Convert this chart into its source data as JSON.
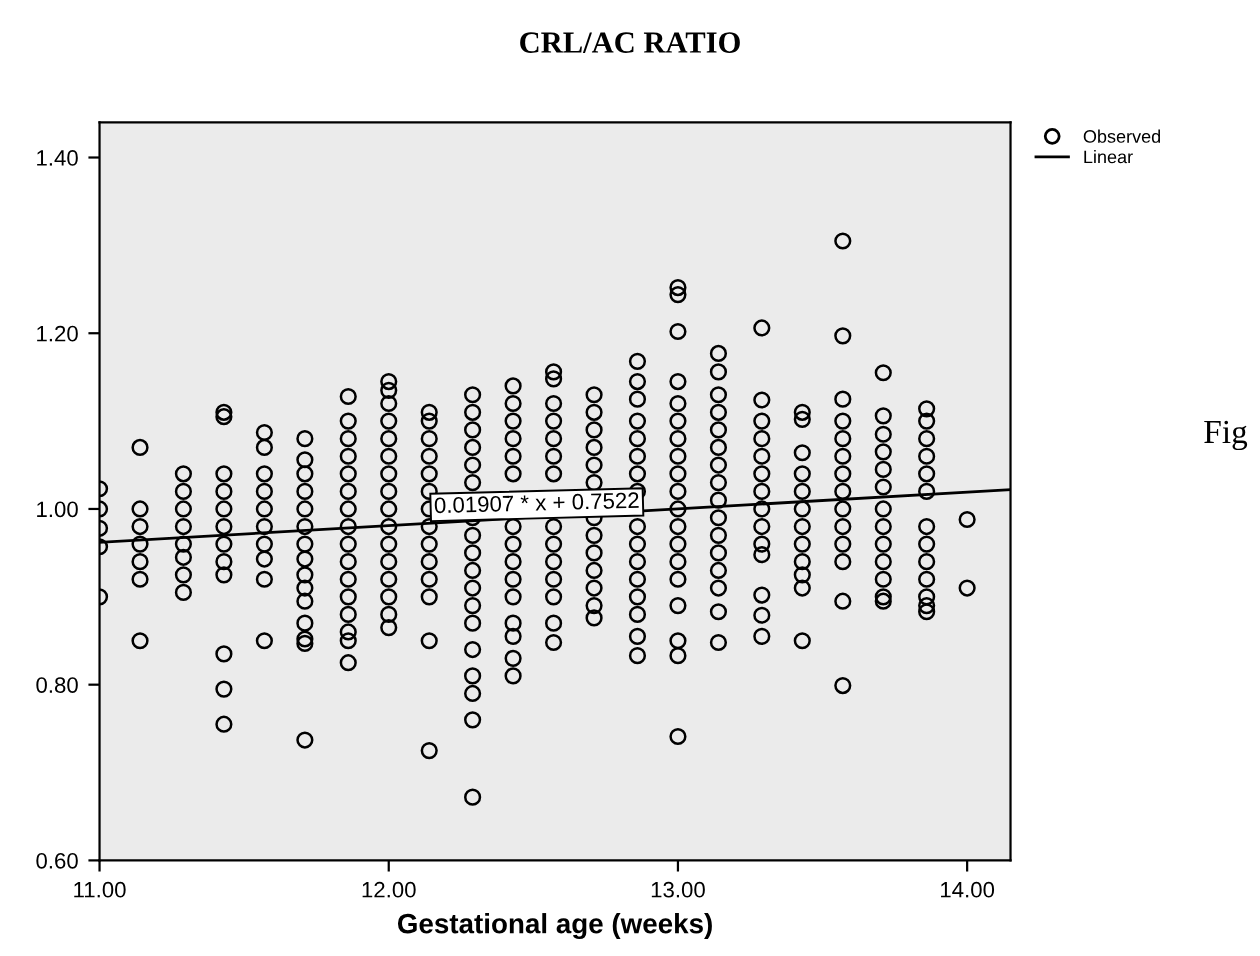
{
  "chart_data": {
    "type": "scatter",
    "title": "CRL/AC RATIO",
    "xlabel": "Gestational age (weeks)",
    "xlim": [
      11,
      14.15
    ],
    "ylim": [
      0.6,
      1.44
    ],
    "xticks": [
      {
        "value": 11,
        "label": "11.00"
      },
      {
        "value": 12,
        "label": "12.00"
      },
      {
        "value": 13,
        "label": "13.00"
      },
      {
        "value": 14,
        "label": "14.00"
      }
    ],
    "yticks": [
      {
        "value": 0.6,
        "label": "0.60"
      },
      {
        "value": 0.8,
        "label": "0.80"
      },
      {
        "value": 1.0,
        "label": "1.00"
      },
      {
        "value": 1.2,
        "label": "1.20"
      },
      {
        "value": 1.4,
        "label": "1.40"
      }
    ],
    "grid": false,
    "legend": "top right",
    "marker": "circle",
    "series": [
      {
        "name": "Observed",
        "color": "#000000",
        "x": [
          11.0,
          11.0,
          11.0,
          11.0,
          11.0,
          11.14,
          11.14,
          11.14,
          11.14,
          11.14,
          11.14,
          11.14,
          11.29,
          11.29,
          11.29,
          11.29,
          11.29,
          11.29,
          11.29,
          11.29,
          11.43,
          11.43,
          11.43,
          11.43,
          11.43,
          11.43,
          11.43,
          11.43,
          11.43,
          11.43,
          11.43,
          11.43,
          11.57,
          11.57,
          11.57,
          11.57,
          11.57,
          11.57,
          11.57,
          11.57,
          11.57,
          11.57,
          11.71,
          11.71,
          11.71,
          11.71,
          11.71,
          11.71,
          11.71,
          11.71,
          11.71,
          11.71,
          11.71,
          11.71,
          11.71,
          11.71,
          11.71,
          11.86,
          11.86,
          11.86,
          11.86,
          11.86,
          11.86,
          11.86,
          11.86,
          11.86,
          11.86,
          11.86,
          11.86,
          11.86,
          11.86,
          11.86,
          11.86,
          12.0,
          12.0,
          12.0,
          12.0,
          12.0,
          12.0,
          12.0,
          12.0,
          12.0,
          12.0,
          12.0,
          12.0,
          12.0,
          12.0,
          12.0,
          12.0,
          12.14,
          12.14,
          12.14,
          12.14,
          12.14,
          12.14,
          12.14,
          12.14,
          12.14,
          12.14,
          12.14,
          12.14,
          12.14,
          12.14,
          12.29,
          12.29,
          12.29,
          12.29,
          12.29,
          12.29,
          12.29,
          12.29,
          12.29,
          12.29,
          12.29,
          12.29,
          12.29,
          12.29,
          12.29,
          12.29,
          12.29,
          12.29,
          12.43,
          12.43,
          12.43,
          12.43,
          12.43,
          12.43,
          12.43,
          12.43,
          12.43,
          12.43,
          12.43,
          12.43,
          12.43,
          12.43,
          12.43,
          12.57,
          12.57,
          12.57,
          12.57,
          12.57,
          12.57,
          12.57,
          12.57,
          12.57,
          12.57,
          12.57,
          12.57,
          12.57,
          12.57,
          12.71,
          12.71,
          12.71,
          12.71,
          12.71,
          12.71,
          12.71,
          12.71,
          12.71,
          12.71,
          12.71,
          12.71,
          12.71,
          12.86,
          12.86,
          12.86,
          12.86,
          12.86,
          12.86,
          12.86,
          12.86,
          12.86,
          12.86,
          12.86,
          12.86,
          12.86,
          12.86,
          12.86,
          12.86,
          13.0,
          13.0,
          13.0,
          13.0,
          13.0,
          13.0,
          13.0,
          13.0,
          13.0,
          13.0,
          13.0,
          13.0,
          13.0,
          13.0,
          13.0,
          13.0,
          13.0,
          13.0,
          13.0,
          13.14,
          13.14,
          13.14,
          13.14,
          13.14,
          13.14,
          13.14,
          13.14,
          13.14,
          13.14,
          13.14,
          13.14,
          13.14,
          13.14,
          13.14,
          13.14,
          13.29,
          13.29,
          13.29,
          13.29,
          13.29,
          13.29,
          13.29,
          13.29,
          13.29,
          13.29,
          13.29,
          13.29,
          13.29,
          13.29,
          13.43,
          13.43,
          13.43,
          13.43,
          13.43,
          13.43,
          13.43,
          13.43,
          13.43,
          13.43,
          13.43,
          13.43,
          13.57,
          13.57,
          13.57,
          13.57,
          13.57,
          13.57,
          13.57,
          13.57,
          13.57,
          13.57,
          13.57,
          13.57,
          13.57,
          13.57,
          13.71,
          13.71,
          13.71,
          13.71,
          13.71,
          13.71,
          13.71,
          13.71,
          13.71,
          13.71,
          13.71,
          13.71,
          13.71,
          13.86,
          13.86,
          13.86,
          13.86,
          13.86,
          13.86,
          13.86,
          13.86,
          13.86,
          13.86,
          13.86,
          13.86,
          13.86,
          14.0,
          14.0
        ],
        "values": [
          1.023,
          1.0,
          0.978,
          0.957,
          0.9,
          1.07,
          1.0,
          0.98,
          0.96,
          0.94,
          0.92,
          0.85,
          1.04,
          1.02,
          1.0,
          0.98,
          0.96,
          0.945,
          0.925,
          0.905,
          1.11,
          1.105,
          1.04,
          1.02,
          1.0,
          0.98,
          0.96,
          0.94,
          0.925,
          0.835,
          0.795,
          0.755,
          1.087,
          1.07,
          1.04,
          1.02,
          1.0,
          0.98,
          0.96,
          0.943,
          0.92,
          0.85,
          1.08,
          1.056,
          1.04,
          1.02,
          1.0,
          0.98,
          0.96,
          0.943,
          0.925,
          0.91,
          0.895,
          0.87,
          0.852,
          0.847,
          0.737,
          1.128,
          1.1,
          1.08,
          1.06,
          1.04,
          1.02,
          1.0,
          0.98,
          0.96,
          0.94,
          0.92,
          0.9,
          0.88,
          0.86,
          0.85,
          0.825,
          1.145,
          1.135,
          1.12,
          1.1,
          1.08,
          1.06,
          1.04,
          1.02,
          1.0,
          0.98,
          0.96,
          0.94,
          0.92,
          0.9,
          0.88,
          0.865,
          1.11,
          1.1,
          1.08,
          1.06,
          1.04,
          1.02,
          1.0,
          0.98,
          0.96,
          0.94,
          0.92,
          0.9,
          0.85,
          0.725,
          1.13,
          1.11,
          1.09,
          1.07,
          1.05,
          1.03,
          0.99,
          0.97,
          0.95,
          0.93,
          0.91,
          0.89,
          0.87,
          0.84,
          0.81,
          0.79,
          0.76,
          0.672,
          1.14,
          1.12,
          1.1,
          1.08,
          1.06,
          1.04,
          0.98,
          0.96,
          0.94,
          0.92,
          0.9,
          0.87,
          0.855,
          0.83,
          0.81,
          1.156,
          1.148,
          1.12,
          1.1,
          1.08,
          1.06,
          1.04,
          0.98,
          0.96,
          0.94,
          0.92,
          0.9,
          0.87,
          0.848,
          1.13,
          1.11,
          1.09,
          1.07,
          1.05,
          1.03,
          0.99,
          0.97,
          0.95,
          0.93,
          0.91,
          0.89,
          0.876,
          1.168,
          1.145,
          1.125,
          1.1,
          1.08,
          1.06,
          1.04,
          1.02,
          0.98,
          0.96,
          0.94,
          0.92,
          0.9,
          0.88,
          0.855,
          0.833,
          1.252,
          1.244,
          1.202,
          1.145,
          1.12,
          1.1,
          1.08,
          1.06,
          1.04,
          1.02,
          1.0,
          0.98,
          0.96,
          0.94,
          0.92,
          0.89,
          0.85,
          0.833,
          0.741,
          1.177,
          1.156,
          1.13,
          1.11,
          1.09,
          1.07,
          1.05,
          1.03,
          1.01,
          0.99,
          0.97,
          0.95,
          0.93,
          0.91,
          0.883,
          0.848,
          1.206,
          1.124,
          1.1,
          1.08,
          1.06,
          1.04,
          1.02,
          1.0,
          0.98,
          0.96,
          0.948,
          0.902,
          0.879,
          0.855,
          1.11,
          1.102,
          1.064,
          1.04,
          1.02,
          1.0,
          0.98,
          0.96,
          0.94,
          0.925,
          0.91,
          0.85,
          1.305,
          1.197,
          1.125,
          1.1,
          1.08,
          1.06,
          1.04,
          1.02,
          1.0,
          0.98,
          0.96,
          0.94,
          0.895,
          0.799,
          1.155,
          1.106,
          1.085,
          1.065,
          1.045,
          1.025,
          1.0,
          0.98,
          0.96,
          0.94,
          0.92,
          0.9,
          0.895,
          1.114,
          1.1,
          1.08,
          1.06,
          1.04,
          1.02,
          0.98,
          0.96,
          0.94,
          0.92,
          0.9,
          0.89,
          0.883,
          0.988,
          0.91
        ]
      },
      {
        "name": "Linear",
        "type": "line",
        "color": "#000000",
        "marker": "none",
        "line_style": "solid",
        "x": [
          11,
          14.15
        ],
        "values": [
          0.962,
          1.022
        ]
      }
    ],
    "annotations": [
      "0.01907 * x + 0.7522",
      "Fig"
    ]
  }
}
